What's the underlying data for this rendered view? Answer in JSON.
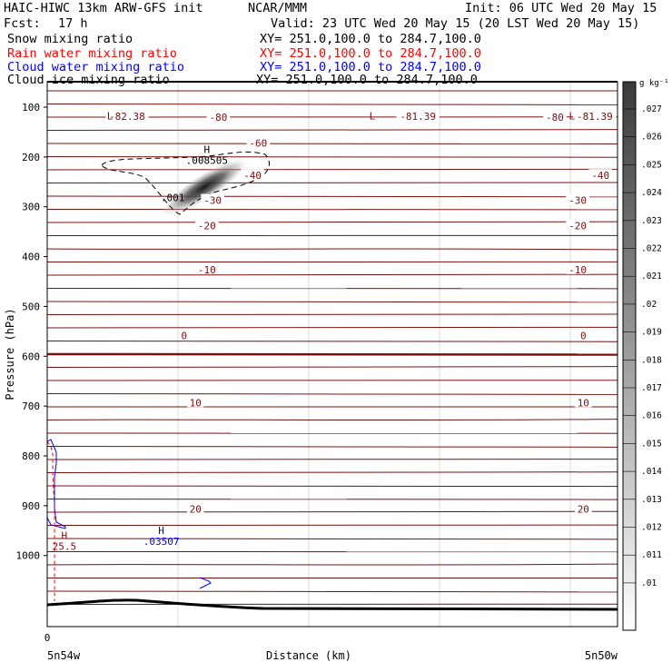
{
  "header": {
    "title": "HAIC-HIWC 13km ARW-GFS init",
    "org": "NCAR/MMM",
    "init": "Init: 06 UTC Wed 20 May 15",
    "fcst_label": "Fcst:",
    "fcst_value": "17 h",
    "valid": "Valid: 23 UTC Wed 20 May 15 (20 LST Wed 20 May 15)",
    "fields": [
      {
        "name": "Snow mixing ratio",
        "xy": "XY= 251.0,100.0 to 284.7,100.0",
        "color": "#000000"
      },
      {
        "name": "Rain water mixing ratio",
        "xy": "XY= 251.0,100.0 to 284.7,100.0",
        "color": "#ff0000"
      },
      {
        "name": "Cloud water mixing ratio",
        "xy": "XY= 251.0,100.0 to 284.7,100.0",
        "color": "#0000ff"
      },
      {
        "name": "Cloud ice mixing ratio",
        "xy": "XY= 251.0,100.0 to 284.7,100.0",
        "color": "#000000"
      }
    ]
  },
  "colorbar": {
    "unit": "g kg⁻¹",
    "ticks": [
      ".027",
      ".026",
      ".025",
      ".024",
      ".023",
      ".022",
      ".021",
      ".02",
      ".019",
      ".018",
      ".017",
      ".016",
      ".015",
      ".014",
      ".013",
      ".012",
      ".011",
      ".01"
    ]
  },
  "chart_data": {
    "type": "cross-section contour",
    "xlabel": "Distance (km)",
    "ylabel": "Pressure (hPa)",
    "x_tick_labels": [
      "0"
    ],
    "x_end_labels": [
      "5n54w",
      "5n50w"
    ],
    "y_ticks": [
      100,
      200,
      300,
      400,
      500,
      600,
      700,
      800,
      900,
      1000
    ],
    "ylim": [
      1050,
      70
    ],
    "colors": {
      "temperature": "#7a1010",
      "rain": "#ff0000",
      "cloud_water": "#0000ff",
      "cloud_ice": "#000000",
      "terrain": "#000000"
    },
    "temperature_labels": [
      {
        "text": "-82.38",
        "p": 118,
        "x": 0.14
      },
      {
        "text": "-80",
        "p": 120,
        "x": 0.3
      },
      {
        "text": "-81.39",
        "p": 118,
        "x": 0.65
      },
      {
        "text": "-80",
        "p": 120,
        "x": 0.89
      },
      {
        "text": "-81.39",
        "p": 118,
        "x": 0.96
      },
      {
        "text": "-60",
        "p": 172,
        "x": 0.37
      },
      {
        "text": "-40",
        "p": 237,
        "x": 0.36
      },
      {
        "text": "-40",
        "p": 237,
        "x": 0.97
      },
      {
        "text": "-30",
        "p": 287,
        "x": 0.29
      },
      {
        "text": "-30",
        "p": 287,
        "x": 0.93
      },
      {
        "text": "-20",
        "p": 338,
        "x": 0.28
      },
      {
        "text": "-20",
        "p": 338,
        "x": 0.93
      },
      {
        "text": "-10",
        "p": 426,
        "x": 0.28
      },
      {
        "text": "-10",
        "p": 426,
        "x": 0.93
      },
      {
        "text": "0",
        "p": 558,
        "x": 0.24
      },
      {
        "text": "0",
        "p": 558,
        "x": 0.94
      },
      {
        "text": "10",
        "p": 693,
        "x": 0.26
      },
      {
        "text": "10",
        "p": 693,
        "x": 0.94
      },
      {
        "text": "20",
        "p": 907,
        "x": 0.26
      },
      {
        "text": "20",
        "p": 907,
        "x": 0.94
      }
    ],
    "low_markers": [
      {
        "text": "L",
        "p": 88,
        "x": 0.11
      },
      {
        "text": "L",
        "p": 88,
        "x": 0.57
      },
      {
        "text": "L",
        "p": 88,
        "x": 0.92
      }
    ],
    "extrema": [
      {
        "text": "H",
        "value": ".008505",
        "p": 210,
        "x": 0.28,
        "series": "cloud_ice"
      },
      {
        "text": "",
        "value": ".001",
        "p": 285,
        "x": 0.22,
        "series": "cloud_ice"
      },
      {
        "text": "H",
        "value": ".03507",
        "p": 975,
        "x": 0.2,
        "series": "cloud_water"
      },
      {
        "text": "H",
        "value": "25.5",
        "p": 985,
        "x": 0.03,
        "series": "temperature"
      }
    ]
  }
}
